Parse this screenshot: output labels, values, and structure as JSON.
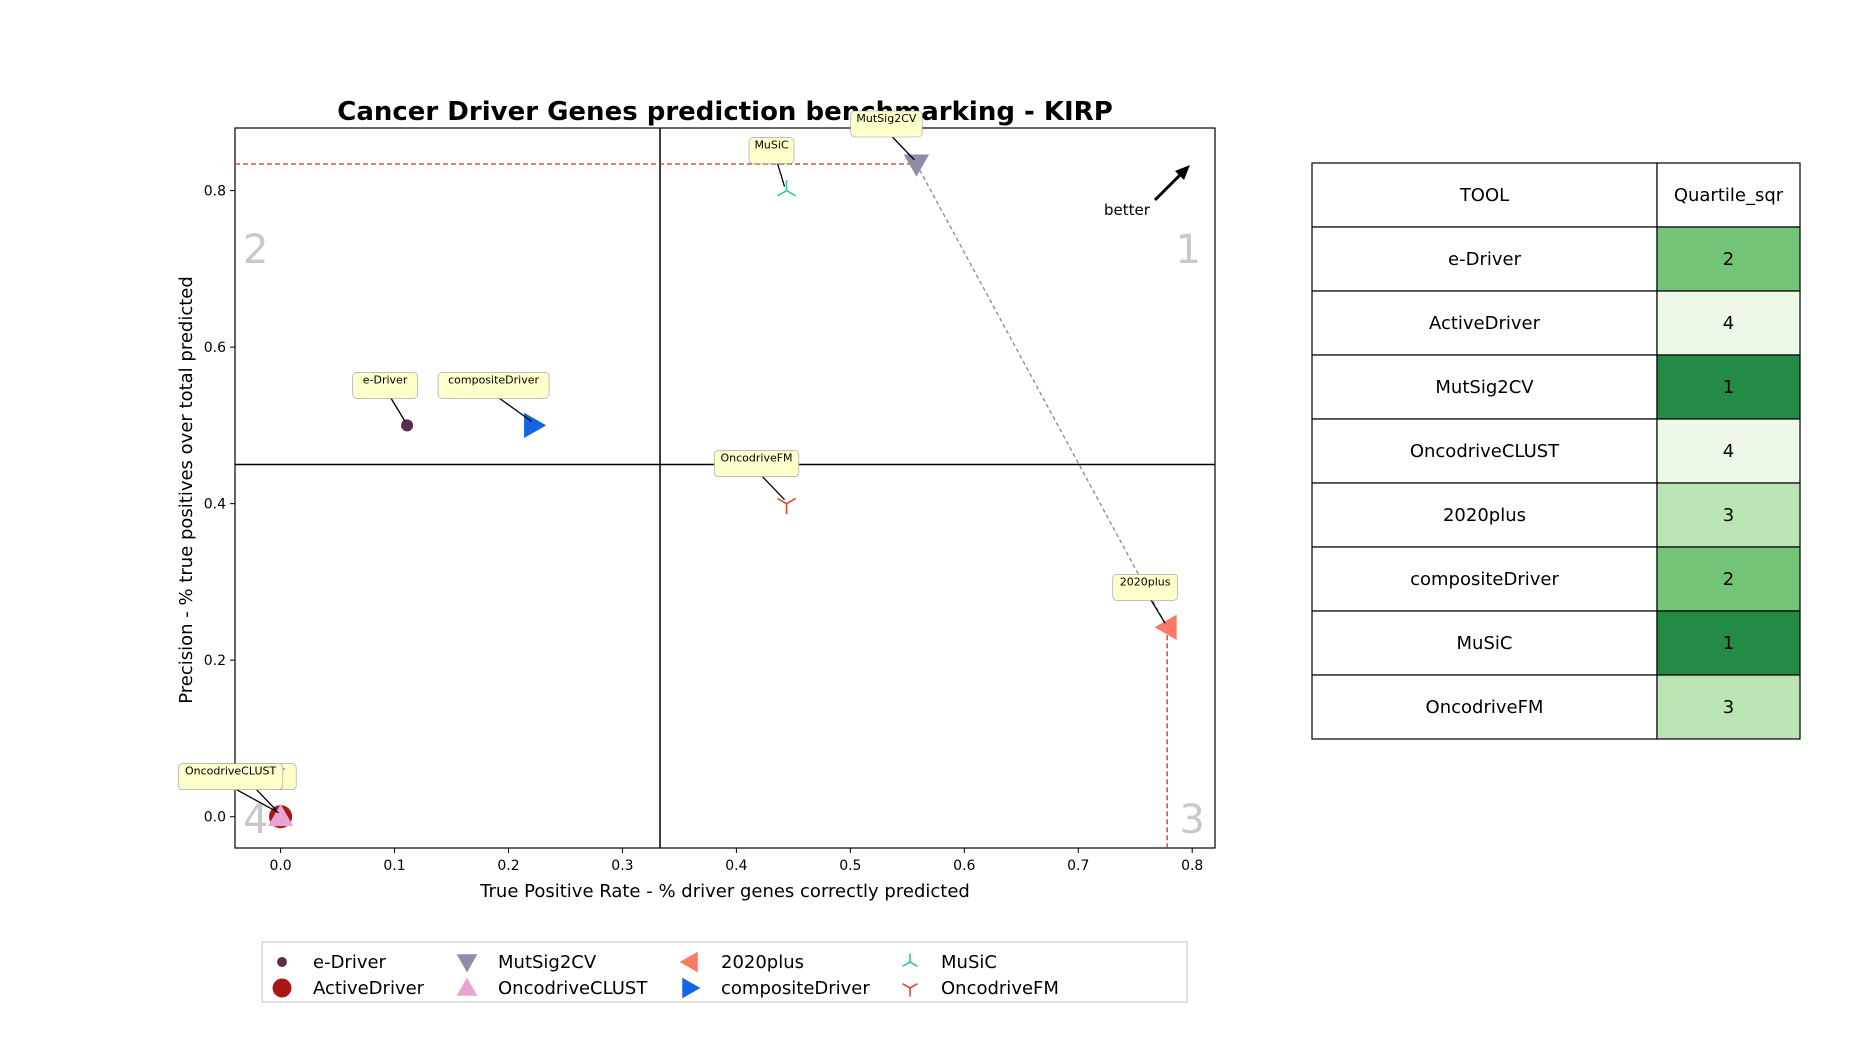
{
  "chart_data": {
    "type": "scatter",
    "title": "Cancer Driver Genes prediction benchmarking - KIRP",
    "xlabel": "True Positive Rate - % driver genes correctly predicted",
    "ylabel": "Precision - % true positives over total predicted",
    "xlim": [
      -0.04,
      0.82
    ],
    "ylim": [
      -0.04,
      0.88
    ],
    "xticks": [
      0.0,
      0.1,
      0.2,
      0.3,
      0.4,
      0.5,
      0.6,
      0.7,
      0.8
    ],
    "yticks": [
      0.0,
      0.2,
      0.4,
      0.6,
      0.8
    ],
    "xtick_labels": [
      "0.0",
      "0.1",
      "0.2",
      "0.3",
      "0.4",
      "0.5",
      "0.6",
      "0.7",
      "0.8"
    ],
    "ytick_labels": [
      "0.0",
      "0.2",
      "0.4",
      "0.6",
      "0.8"
    ],
    "quadrant_split": {
      "x": 0.333,
      "y": 0.45
    },
    "quadrant_labels": [
      "1",
      "2",
      "3",
      "4"
    ],
    "pareto_frontier": [
      {
        "x": 0.558,
        "y": 0.834
      },
      {
        "x": 0.778,
        "y": 0.242
      }
    ],
    "best_x_line": 0.778,
    "best_y_line": 0.834,
    "better_label": "better",
    "series": [
      {
        "name": "e-Driver",
        "x": 0.111,
        "y": 0.5,
        "marker": "dot",
        "color": "#5a2d4d"
      },
      {
        "name": "ActiveDriver",
        "x": 0.0,
        "y": 0.0,
        "marker": "circle",
        "color": "#a81616"
      },
      {
        "name": "MutSig2CV",
        "x": 0.558,
        "y": 0.834,
        "marker": "triangle-down",
        "color": "#8f8ba8"
      },
      {
        "name": "OncodriveCLUST",
        "x": 0.0,
        "y": 0.0,
        "marker": "triangle-up",
        "color": "#e8a3d4"
      },
      {
        "name": "2020plus",
        "x": 0.778,
        "y": 0.242,
        "marker": "triangle-left",
        "color": "#f97b66"
      },
      {
        "name": "compositeDriver",
        "x": 0.222,
        "y": 0.5,
        "marker": "triangle-right",
        "color": "#1464e6"
      },
      {
        "name": "MuSiC",
        "x": 0.444,
        "y": 0.8,
        "marker": "tri-down",
        "color": "#2ec4b6"
      },
      {
        "name": "OncodriveFM",
        "x": 0.444,
        "y": 0.4,
        "marker": "tri-up",
        "color": "#d94a2a"
      }
    ],
    "legend_placement": "bottom"
  },
  "table": {
    "headers": [
      "TOOL",
      "Quartile_sqr"
    ],
    "rows": [
      {
        "tool": "e-Driver",
        "quartile": "2",
        "color": "#73c476"
      },
      {
        "tool": "ActiveDriver",
        "quartile": "4",
        "color": "#edf8e9"
      },
      {
        "tool": "MutSig2CV",
        "quartile": "1",
        "color": "#238b45"
      },
      {
        "tool": "OncodriveCLUST",
        "quartile": "4",
        "color": "#edf8e9"
      },
      {
        "tool": "2020plus",
        "quartile": "3",
        "color": "#bae4b3"
      },
      {
        "tool": "compositeDriver",
        "quartile": "2",
        "color": "#73c476"
      },
      {
        "tool": "MuSiC",
        "quartile": "1",
        "color": "#238b45"
      },
      {
        "tool": "OncodriveFM",
        "quartile": "3",
        "color": "#bae4b3"
      }
    ]
  }
}
